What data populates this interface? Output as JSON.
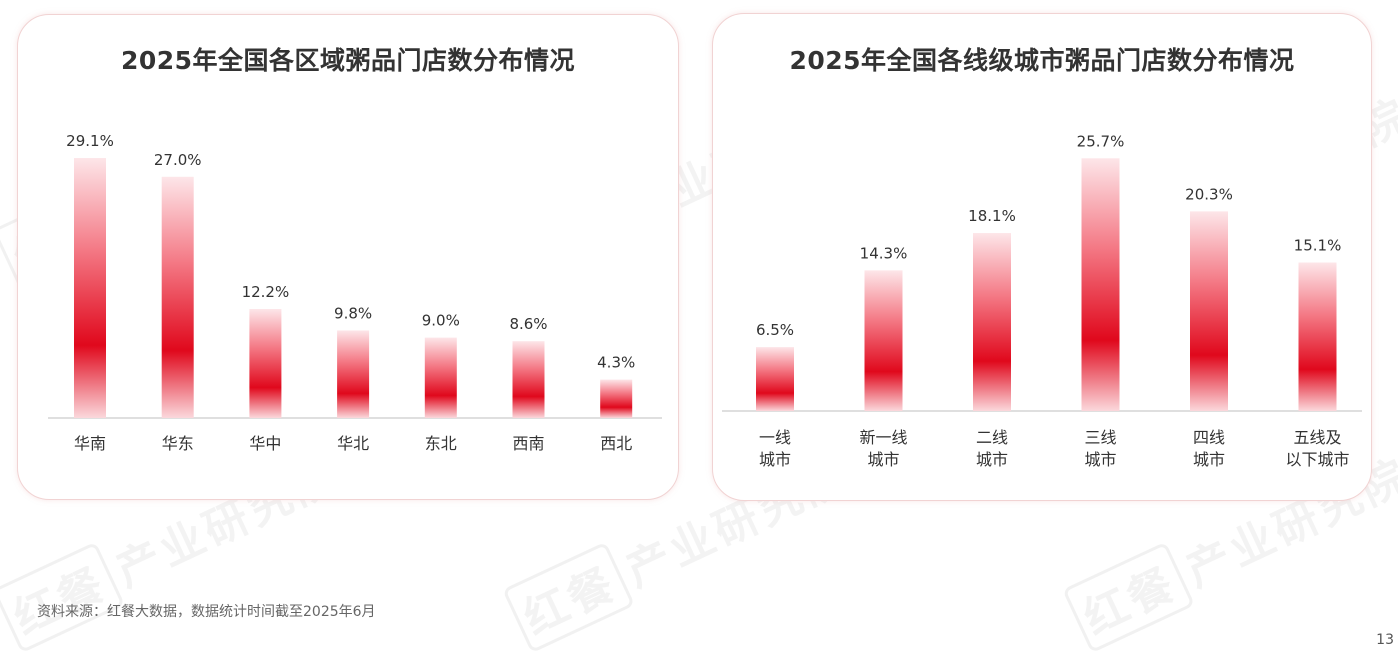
{
  "watermark": {
    "logo_text": "红餐",
    "text": "产业研究院"
  },
  "colors": {
    "bar_center": "#e0081c",
    "bar_edge": "#fbe3e6",
    "axis": "#cccccc",
    "panel_border": "#f1d3d3"
  },
  "chart_data": [
    {
      "type": "bar",
      "title": "2025年全国各区域粥品门店数分布情况",
      "categories": [
        "华南",
        "华东",
        "华中",
        "华北",
        "东北",
        "西南",
        "西北"
      ],
      "values": [
        29.1,
        27.0,
        12.2,
        9.8,
        9.0,
        8.6,
        4.3
      ],
      "data_labels": [
        "29.1%",
        "27.0%",
        "12.2%",
        "9.8%",
        "9.0%",
        "8.6%",
        "4.3%"
      ],
      "ylim": [
        0,
        30
      ],
      "grid": false,
      "legend": "none"
    },
    {
      "type": "bar",
      "title": "2025年全国各线级城市粥品门店数分布情况",
      "categories": [
        [
          "一线",
          "城市"
        ],
        [
          "新一线",
          "城市"
        ],
        [
          "二线",
          "城市"
        ],
        [
          "三线",
          "城市"
        ],
        [
          "四线",
          "城市"
        ],
        [
          "五线及",
          "以下城市"
        ]
      ],
      "values": [
        6.5,
        14.3,
        18.1,
        25.7,
        20.3,
        15.1
      ],
      "data_labels": [
        "6.5%",
        "14.3%",
        "18.1%",
        "25.7%",
        "20.3%",
        "15.1%"
      ],
      "ylim": [
        0,
        30
      ],
      "grid": false,
      "legend": "none"
    }
  ],
  "footnote": "资料来源：红餐大数据，数据统计时间截至2025年6月",
  "page_number": "13"
}
